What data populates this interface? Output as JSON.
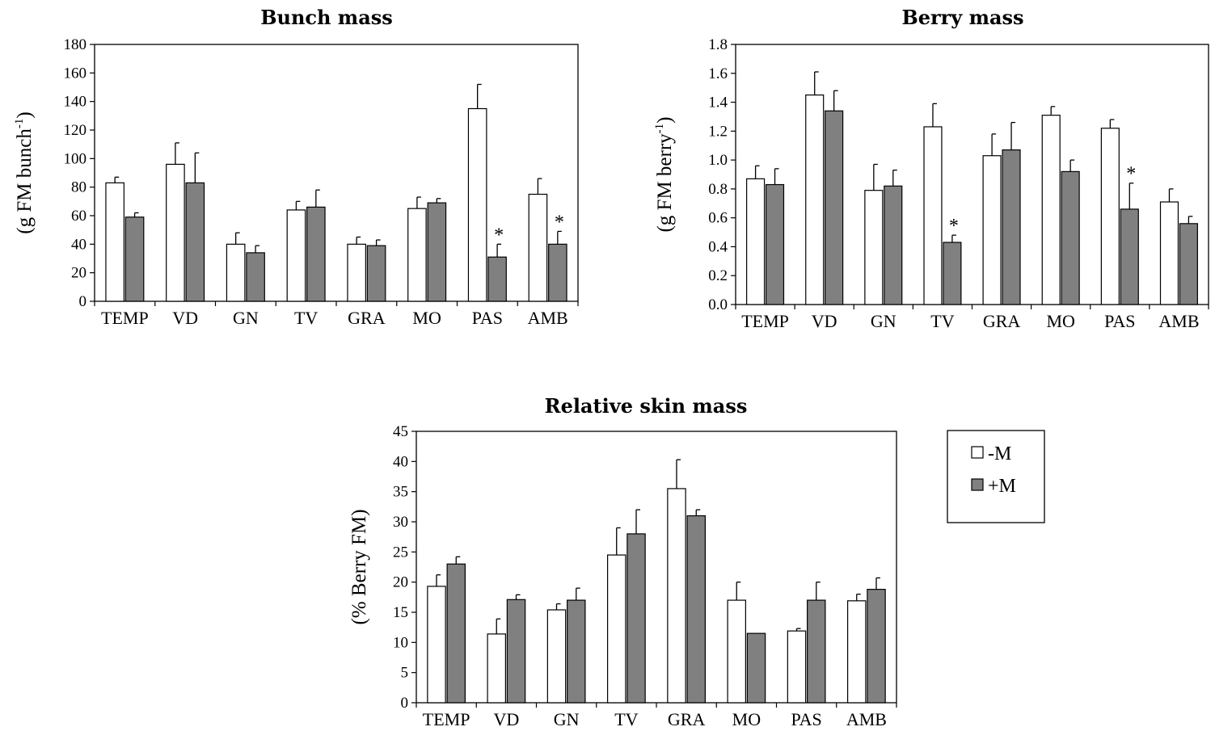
{
  "colors": {
    "minus_m": "#ffffff",
    "plus_m": "#808080",
    "stroke": "#000000"
  },
  "legend": {
    "items": [
      "-M",
      "+M"
    ]
  },
  "chart_data": [
    {
      "type": "bar",
      "title": "Bunch mass",
      "ylabel_main": "(g FM bunch",
      "ylabel_sup": "-1",
      "ylabel_end": ")",
      "ylim": [
        0,
        180
      ],
      "yticks": [
        "0",
        "20",
        "40",
        "60",
        "80",
        "100",
        "120",
        "140",
        "160",
        "180"
      ],
      "ytick_values": [
        0,
        20,
        40,
        60,
        80,
        100,
        120,
        140,
        160,
        180
      ],
      "categories": [
        "TEMP",
        "VD",
        "GN",
        "TV",
        "GRA",
        "MO",
        "PAS",
        "AMB"
      ],
      "series": [
        {
          "name": "-M",
          "values": [
            83,
            96,
            40,
            64,
            40,
            65,
            135,
            75
          ],
          "errors": [
            4,
            15,
            8,
            6,
            5,
            8,
            17,
            11
          ]
        },
        {
          "name": "+M",
          "values": [
            59,
            83,
            34,
            66,
            39,
            69,
            31,
            40
          ],
          "errors": [
            3,
            21,
            5,
            12,
            4,
            3,
            9,
            9
          ]
        }
      ],
      "significance": [
        {
          "category_index": 6,
          "series_index": 1,
          "label": "*"
        },
        {
          "category_index": 7,
          "series_index": 1,
          "label": "*"
        }
      ]
    },
    {
      "type": "bar",
      "title": "Berry mass",
      "ylabel_main": "(g FM berry",
      "ylabel_sup": "-1",
      "ylabel_end": ")",
      "ylim": [
        0,
        1.8
      ],
      "yticks": [
        "0.0",
        "0.2",
        "0.4",
        "0.6",
        "0.8",
        "1.0",
        "1.2",
        "1.4",
        "1.6",
        "1.8"
      ],
      "ytick_values": [
        0,
        0.2,
        0.4,
        0.6,
        0.8,
        1.0,
        1.2,
        1.4,
        1.6,
        1.8
      ],
      "categories": [
        "TEMP",
        "VD",
        "GN",
        "TV",
        "GRA",
        "MO",
        "PAS",
        "AMB"
      ],
      "series": [
        {
          "name": "-M",
          "values": [
            0.87,
            1.45,
            0.79,
            1.23,
            1.03,
            1.31,
            1.22,
            0.71
          ],
          "errors": [
            0.09,
            0.16,
            0.18,
            0.16,
            0.15,
            0.06,
            0.06,
            0.09
          ]
        },
        {
          "name": "+M",
          "values": [
            0.83,
            1.34,
            0.82,
            0.43,
            1.07,
            0.92,
            0.66,
            0.56
          ],
          "errors": [
            0.11,
            0.14,
            0.11,
            0.05,
            0.19,
            0.08,
            0.18,
            0.05
          ]
        }
      ],
      "significance": [
        {
          "category_index": 3,
          "series_index": 1,
          "label": "*"
        },
        {
          "category_index": 6,
          "series_index": 1,
          "label": "*"
        }
      ]
    },
    {
      "type": "bar",
      "title": "Relative skin mass",
      "ylabel_main": "(% Berry  FM)",
      "ylabel_sup": "",
      "ylabel_end": "",
      "ylim": [
        0,
        45
      ],
      "yticks": [
        "0",
        "5",
        "10",
        "15",
        "20",
        "25",
        "30",
        "35",
        "40",
        "45"
      ],
      "ytick_values": [
        0,
        5,
        10,
        15,
        20,
        25,
        30,
        35,
        40,
        45
      ],
      "categories": [
        "TEMP",
        "VD",
        "GN",
        "TV",
        "GRA",
        "MO",
        "PAS",
        "AMB"
      ],
      "series": [
        {
          "name": "-M",
          "values": [
            19.3,
            11.4,
            15.4,
            24.5,
            35.5,
            17.0,
            11.9,
            16.9
          ],
          "errors": [
            1.9,
            2.5,
            1.0,
            4.5,
            4.8,
            3.0,
            0.4,
            1.1
          ]
        },
        {
          "name": "+M",
          "values": [
            23.0,
            17.1,
            17.0,
            28.0,
            31.0,
            11.5,
            17.0,
            18.8
          ],
          "errors": [
            1.2,
            0.8,
            2.0,
            4.0,
            1.0,
            0.0,
            3.0,
            1.9
          ]
        }
      ],
      "significance": []
    }
  ]
}
